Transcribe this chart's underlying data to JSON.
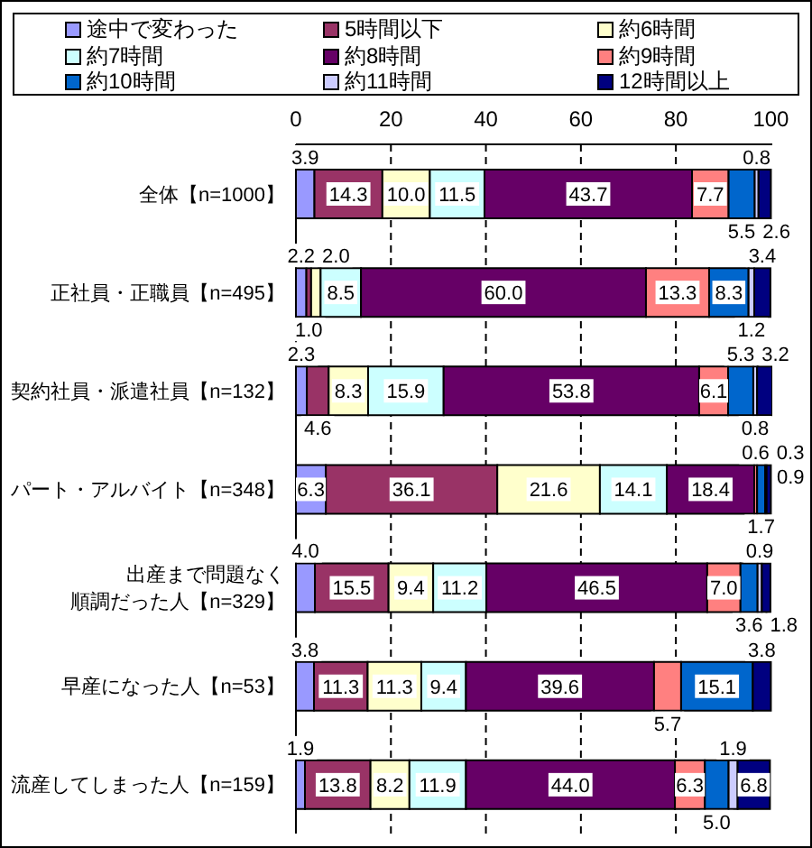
{
  "chart_data": {
    "type": "bar",
    "orientation": "horizontal",
    "stacked": true,
    "categories": [
      "全体【n=1000】",
      "正社員・正職員【n=495】",
      "契約社員・派遣社員【n=132】",
      "パート・アルバイト【n=348】",
      "出産まで問題なく順調だった人【n=329】",
      "早産になった人【n=53】",
      "流産してしまった人【n=159】"
    ],
    "series": [
      {
        "name": "途中で変わった",
        "color": "#9999ff",
        "values": [
          3.9,
          2.2,
          2.3,
          6.3,
          4.0,
          3.8,
          1.9
        ],
        "value_labels": [
          "3.9",
          "2.2",
          "2.3",
          "6.3",
          "4.0",
          "3.8",
          "1.9"
        ]
      },
      {
        "name": "5時間以下",
        "color": "#993366",
        "values": [
          14.3,
          1.0,
          4.6,
          36.1,
          15.5,
          11.3,
          13.8
        ],
        "value_labels": [
          "14.3",
          "1.0",
          "4.6",
          "36.1",
          "15.5",
          "11.3",
          "13.8"
        ]
      },
      {
        "name": "約6時間",
        "color": "#ffffcc",
        "values": [
          10.0,
          2.0,
          8.3,
          21.6,
          9.4,
          11.3,
          8.2
        ],
        "value_labels": [
          "10.0",
          "2.0",
          "8.3",
          "21.6",
          "9.4",
          "11.3",
          "8.2"
        ]
      },
      {
        "name": "約7時間",
        "color": "#ccffff",
        "values": [
          11.5,
          8.5,
          15.9,
          14.1,
          11.2,
          9.4,
          11.9
        ],
        "value_labels": [
          "11.5",
          "8.5",
          "15.9",
          "14.1",
          "11.2",
          "9.4",
          "11.9"
        ]
      },
      {
        "name": "約8時間",
        "color": "#660066",
        "values": [
          43.7,
          60.0,
          53.8,
          18.4,
          46.5,
          39.6,
          44.0
        ],
        "value_labels": [
          "43.7",
          "60.0",
          "53.8",
          "18.4",
          "46.5",
          "39.6",
          "44.0"
        ]
      },
      {
        "name": "約9時間",
        "color": "#ff8080",
        "values": [
          7.7,
          13.3,
          6.1,
          0.6,
          7.0,
          5.7,
          6.3
        ],
        "value_labels": [
          "7.7",
          "13.3",
          "6.1",
          "0.6",
          "7.0",
          "5.7",
          "6.3"
        ]
      },
      {
        "name": "約10時間",
        "color": "#0066cc",
        "values": [
          5.5,
          8.3,
          5.3,
          1.7,
          3.6,
          15.1,
          5.0
        ],
        "value_labels": [
          "5.5",
          "8.3",
          "5.3",
          "1.7",
          "3.6",
          "15.1",
          "5.0"
        ]
      },
      {
        "name": "約11時間",
        "color": "#ccccff",
        "values": [
          0.8,
          1.2,
          0.8,
          0.3,
          0.9,
          null,
          1.9
        ],
        "value_labels": [
          "0.8",
          "1.2",
          "0.8",
          "0.3",
          "0.9",
          null,
          "1.9"
        ]
      },
      {
        "name": "12時間以上",
        "color": "#000080",
        "values": [
          2.6,
          3.4,
          3.2,
          0.9,
          1.8,
          3.8,
          6.8
        ],
        "value_labels": [
          "2.6",
          "3.4",
          "3.2",
          "0.9",
          "1.8",
          "3.8",
          "6.8"
        ]
      }
    ],
    "xlim": [
      0,
      100.3
    ],
    "xticks": [
      0,
      20,
      40,
      60,
      80,
      100
    ],
    "grid": "x",
    "legend": "top"
  }
}
